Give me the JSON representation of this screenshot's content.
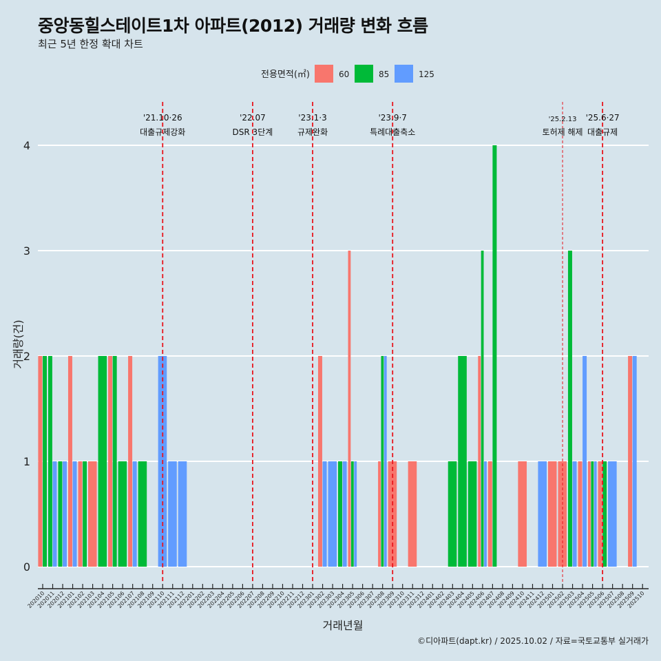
{
  "chart_data": {
    "type": "bar",
    "title": "중앙동힐스테이트1차 아파트(2012) 거래량 변화 흐름",
    "subtitle": "최근 5년 한정 확대 차트",
    "xlabel": "거래년월",
    "ylabel": "거래량(건)",
    "ylim": [
      0,
      4
    ],
    "yticks": [
      0,
      1,
      2,
      3,
      4
    ],
    "legend": {
      "title": "전용면적(㎡)",
      "position": "top"
    },
    "categories": [
      "202010",
      "202011",
      "202012",
      "202101",
      "202102",
      "202103",
      "202104",
      "202105",
      "202106",
      "202107",
      "202108",
      "202109",
      "202110",
      "202111",
      "202112",
      "202201",
      "202202",
      "202203",
      "202204",
      "202205",
      "202206",
      "202207",
      "202208",
      "202209",
      "202210",
      "202211",
      "202212",
      "202301",
      "202302",
      "202303",
      "202304",
      "202305",
      "202306",
      "202307",
      "202308",
      "202309",
      "202310",
      "202311",
      "202312",
      "202401",
      "202402",
      "202403",
      "202404",
      "202405",
      "202406",
      "202407",
      "202408",
      "202409",
      "202410",
      "202411",
      "202412",
      "202501",
      "202502",
      "202503",
      "202504",
      "202505",
      "202506",
      "202507",
      "202508",
      "202509",
      "202510"
    ],
    "series": [
      {
        "name": "60",
        "color": "#f8766d",
        "values": [
          2,
          0,
          0,
          2,
          1,
          1,
          0,
          2,
          0,
          2,
          0,
          0,
          0,
          0,
          0,
          0,
          0,
          0,
          0,
          0,
          0,
          0,
          0,
          0,
          0,
          0,
          0,
          0,
          2,
          0,
          0,
          3,
          0,
          0,
          1,
          1,
          0,
          1,
          0,
          0,
          0,
          0,
          0,
          0,
          2,
          1,
          0,
          0,
          1,
          0,
          0,
          1,
          1,
          0,
          1,
          1,
          1,
          0,
          0,
          2,
          0
        ]
      },
      {
        "name": "85",
        "color": "#00ba38",
        "values": [
          2,
          2,
          1,
          0,
          1,
          0,
          2,
          2,
          1,
          0,
          1,
          0,
          0,
          0,
          0,
          0,
          0,
          0,
          0,
          0,
          0,
          0,
          0,
          0,
          0,
          0,
          0,
          0,
          0,
          0,
          1,
          1,
          0,
          0,
          2,
          0,
          0,
          0,
          0,
          0,
          0,
          1,
          2,
          1,
          3,
          4,
          0,
          0,
          0,
          0,
          0,
          0,
          0,
          3,
          0,
          1,
          1,
          0,
          0,
          0,
          0
        ]
      },
      {
        "name": "125",
        "color": "#619cff",
        "values": [
          0,
          1,
          1,
          1,
          0,
          0,
          0,
          0,
          0,
          1,
          0,
          0,
          2,
          1,
          1,
          0,
          0,
          0,
          0,
          0,
          0,
          0,
          0,
          0,
          0,
          0,
          0,
          0,
          1,
          1,
          1,
          1,
          0,
          0,
          2,
          0,
          0,
          0,
          0,
          0,
          0,
          0,
          0,
          0,
          1,
          0,
          0,
          0,
          0,
          0,
          1,
          0,
          0,
          1,
          2,
          1,
          0,
          1,
          0,
          2,
          0
        ]
      }
    ],
    "events": [
      {
        "month": "202110",
        "date": "'21.10·26",
        "label": "대출규제강화",
        "style": "thick"
      },
      {
        "month": "202207",
        "date": "'22.07",
        "label": "DSR 3단계",
        "style": "thick"
      },
      {
        "month": "202301",
        "date": "'23.1·3",
        "label": "규제완화",
        "style": "thick"
      },
      {
        "month": "202309",
        "date": "'23.9·7",
        "label": "특례대출축소",
        "style": "thick"
      },
      {
        "month": "202502",
        "date": "'25.2.13",
        "label": "토허제 해제",
        "style": "thin"
      },
      {
        "month": "202506",
        "date": "'25.6·27",
        "label": "대출규제",
        "style": "thick"
      }
    ],
    "grid": true
  },
  "caption": "©디아파트(dapt.kr) / 2025.10.02 / 자료=국토교통부 실거래가"
}
